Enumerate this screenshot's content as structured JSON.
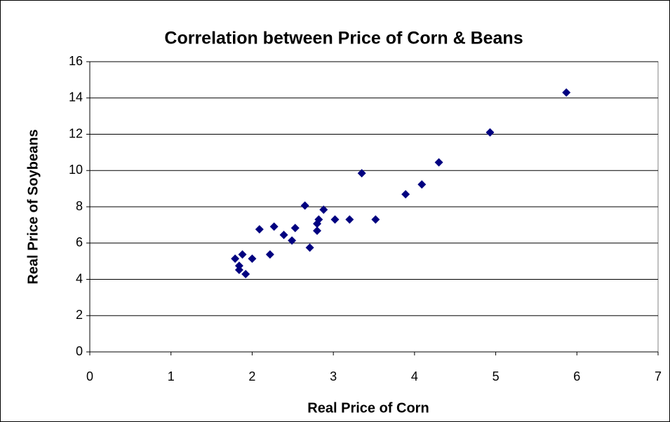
{
  "chart_data": {
    "type": "scatter",
    "title": "Correlation between Price of Corn & Beans",
    "x_label": "Real Price of Corn",
    "y_label": "Real Price of Soybeans",
    "series": [
      {
        "color": "#000080",
        "x": [
          5.87,
          4.93,
          4.3,
          4.09,
          3.89,
          3.35,
          3.52,
          3.2,
          3.02,
          2.88,
          2.82,
          2.8,
          2.8,
          2.65,
          2.71,
          2.53,
          2.49,
          2.39,
          2.27,
          2.22,
          2.09,
          2.0,
          1.88,
          1.79,
          1.84,
          1.84,
          1.92
        ],
        "values": [
          14.3,
          12.1,
          10.45,
          9.23,
          8.69,
          9.85,
          7.3,
          7.3,
          7.3,
          7.84,
          7.3,
          7.07,
          6.68,
          8.07,
          5.75,
          6.83,
          6.14,
          6.45,
          6.91,
          5.37,
          6.76,
          5.14,
          5.37,
          5.14,
          4.75,
          4.52,
          4.29
        ]
      }
    ],
    "xlim": [
      0,
      7
    ],
    "xticks": [
      0,
      1,
      2,
      3,
      4,
      5,
      6,
      7
    ],
    "ylim": [
      0,
      16
    ],
    "yticks": [
      0,
      2,
      4,
      6,
      8,
      10,
      12,
      14,
      16
    ],
    "grid": true
  }
}
